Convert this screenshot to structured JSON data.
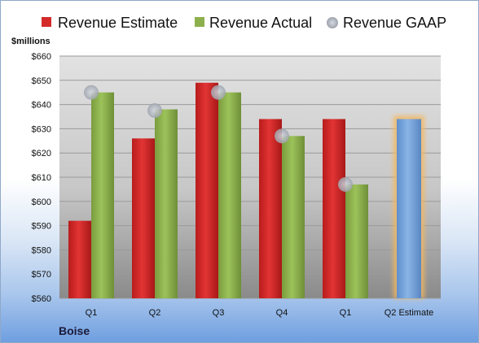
{
  "chart_data": {
    "type": "bar",
    "title": "",
    "ylabel": "$millions",
    "xlabel": "",
    "footer_label": "Boise",
    "ylim": [
      560,
      660
    ],
    "yticks": [
      "$560",
      "$570",
      "$580",
      "$590",
      "$600",
      "$610",
      "$620",
      "$630",
      "$640",
      "$650",
      "$660"
    ],
    "ytick_values": [
      560,
      570,
      580,
      590,
      600,
      610,
      620,
      630,
      640,
      650,
      660
    ],
    "categories": [
      "Q1",
      "Q2",
      "Q3",
      "Q4",
      "Q1",
      "Q2 Estimate"
    ],
    "legend_position": "top",
    "series": [
      {
        "name": "Revenue Estimate",
        "kind": "bar",
        "color": "#d42a2a",
        "values": [
          592,
          626,
          649,
          634,
          634,
          null
        ]
      },
      {
        "name": "Revenue Actual",
        "kind": "bar",
        "color": "#8db04c",
        "values": [
          645,
          638,
          645,
          627,
          607,
          null
        ]
      },
      {
        "name": "Revenue GAAP",
        "kind": "marker",
        "color": "#b8bcc6",
        "values": [
          645,
          637.5,
          645,
          627,
          607,
          null
        ]
      },
      {
        "name": "Q2 Estimate",
        "kind": "bar",
        "color": "#6f9fd6",
        "glow": "#f4b860",
        "values": [
          null,
          null,
          null,
          null,
          null,
          634
        ]
      }
    ]
  }
}
